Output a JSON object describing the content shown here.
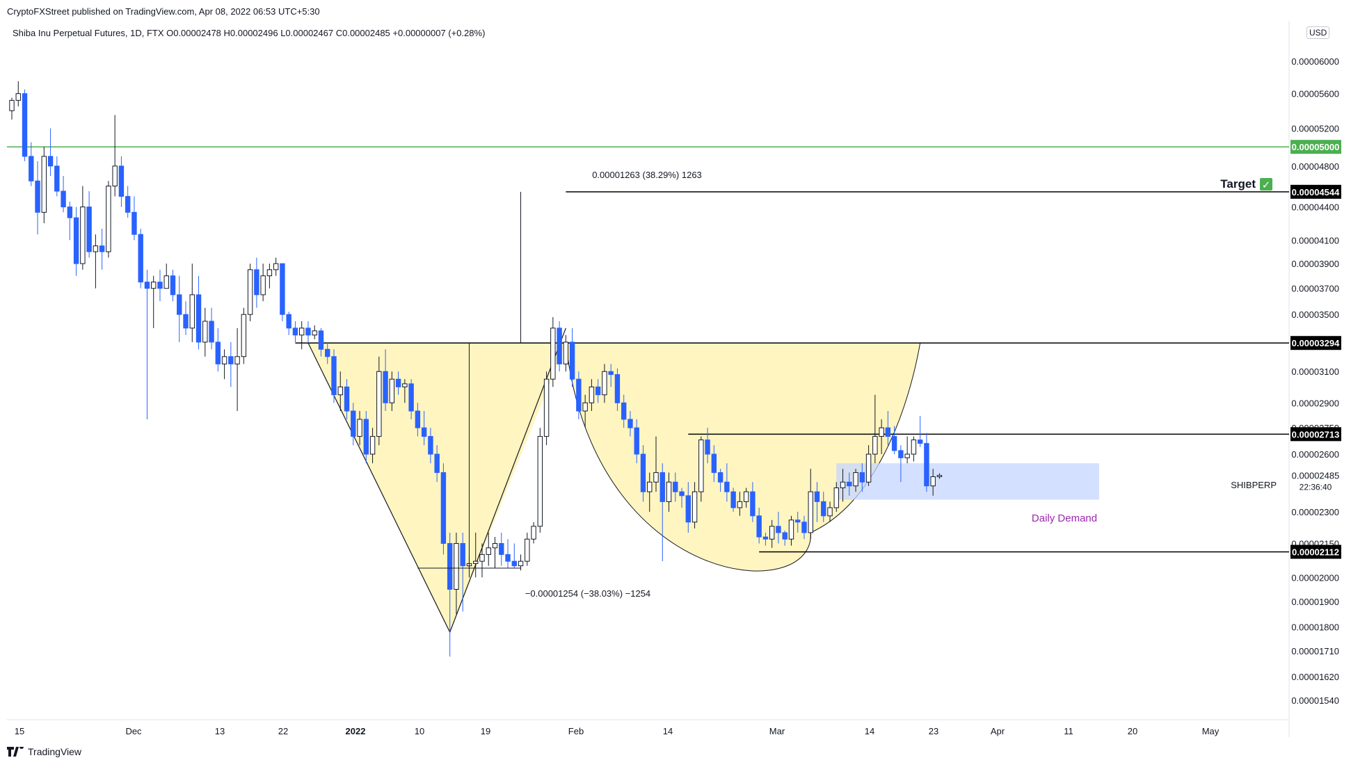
{
  "header": {
    "publisher": "CryptoFXStreet published on TradingView.com, Apr 08, 2022 06:53 UTC+5:30",
    "ohlc": "Shiba Inu Perpetual Futures, 1D, FTX  O0.00002478  H0.00002496  L0.00002467  C0.00002485  +0.00000007 (+0.28%)"
  },
  "footer": {
    "brand": "TradingView"
  },
  "currency": "USD",
  "chart_data": {
    "type": "candlestick",
    "symbol": "SHIBPERP",
    "last_price": "0.00002485",
    "countdown": "22:36:40",
    "x_tick_labels": [
      "15",
      "Dec",
      "13",
      "22",
      "2022",
      "10",
      "19",
      "Feb",
      "14",
      "Mar",
      "14",
      "23",
      "Apr",
      "11",
      "20",
      "May"
    ],
    "y_tick_labels": [
      "0.00006000",
      "0.00005600",
      "0.00005200",
      "0.00004800",
      "0.00004400",
      "0.00004100",
      "0.00003900",
      "0.00003700",
      "0.00003500",
      "0.00003100",
      "0.00002900",
      "0.00002750",
      "0.00002600",
      "0.00002300",
      "0.00002150",
      "0.00002000",
      "0.00001900",
      "0.00001800",
      "0.00001710",
      "0.00001620",
      "0.00001540"
    ],
    "levels": [
      {
        "price": "0.00005000",
        "color": "#4caf50",
        "label": "0.00005000"
      },
      {
        "price": "0.00004544",
        "color": "#000000",
        "label": "0.00004544"
      },
      {
        "price": "0.00003294",
        "color": "#000000",
        "label": "0.00003294"
      },
      {
        "price": "0.00002713",
        "color": "#000000",
        "label": "0.00002713"
      },
      {
        "price": "0.00002112",
        "color": "#000000",
        "label": "0.00002112"
      }
    ],
    "annotations": {
      "target": "Target",
      "target_check": "✓",
      "measure_up": "0.00001263 (38.29%) 1263",
      "measure_down": "−0.00001254 (−38.03%) −1254",
      "daily_demand": "Daily Demand"
    },
    "colors": {
      "up": "#ffffff",
      "down": "#2962ff",
      "pattern_fill": "#fff3b0",
      "demand_fill": "#c5d5ff",
      "demand_text": "#9c27b0",
      "green_line": "#4caf50"
    },
    "candles": [
      [
        5.4e-05,
        5.55e-05,
        5.3e-05,
        5.52e-05
      ],
      [
        5.52e-05,
        5.75e-05,
        5.45e-05,
        5.6e-05
      ],
      [
        5.6e-05,
        5.65e-05,
        4.85e-05,
        4.9e-05
      ],
      [
        4.9e-05,
        5.05e-05,
        4.6e-05,
        4.65e-05
      ],
      [
        4.65e-05,
        4.85e-05,
        4.15e-05,
        4.35e-05
      ],
      [
        4.35e-05,
        5e-05,
        4.25e-05,
        4.9e-05
      ],
      [
        4.9e-05,
        5.2e-05,
        4.7e-05,
        4.8e-05
      ],
      [
        4.8e-05,
        4.9e-05,
        4.5e-05,
        4.55e-05
      ],
      [
        4.55e-05,
        4.7e-05,
        4.35e-05,
        4.4e-05
      ],
      [
        4.4e-05,
        4.45e-05,
        4.1e-05,
        4.3e-05
      ],
      [
        4.3e-05,
        4.4e-05,
        3.8e-05,
        3.9e-05
      ],
      [
        3.9e-05,
        4.6e-05,
        3.85e-05,
        4.4e-05
      ],
      [
        4.4e-05,
        4.55e-05,
        3.95e-05,
        4e-05
      ],
      [
        4e-05,
        4.15e-05,
        3.7e-05,
        4.05e-05
      ],
      [
        4.05e-05,
        4.2e-05,
        3.85e-05,
        4e-05
      ],
      [
        4e-05,
        4.65e-05,
        3.95e-05,
        4.6e-05
      ],
      [
        4.6e-05,
        5.35e-05,
        4.5e-05,
        4.8e-05
      ],
      [
        4.8e-05,
        4.9e-05,
        4.4e-05,
        4.5e-05
      ],
      [
        4.5e-05,
        4.6e-05,
        4.3e-05,
        4.35e-05
      ],
      [
        4.35e-05,
        4.5e-05,
        4.1e-05,
        4.15e-05
      ],
      [
        4.15e-05,
        4.2e-05,
        3.7e-05,
        3.75e-05
      ],
      [
        3.75e-05,
        3.85e-05,
        2.8e-05,
        3.7e-05
      ],
      [
        3.7e-05,
        3.8e-05,
        3.4e-05,
        3.75e-05
      ],
      [
        3.75e-05,
        3.85e-05,
        3.6e-05,
        3.7e-05
      ],
      [
        3.7e-05,
        3.9e-05,
        3.7e-05,
        3.8e-05
      ],
      [
        3.8e-05,
        3.85e-05,
        3.6e-05,
        3.65e-05
      ],
      [
        3.65e-05,
        3.8e-05,
        3.3e-05,
        3.5e-05
      ],
      [
        3.5e-05,
        3.6e-05,
        3.35e-05,
        3.4e-05
      ],
      [
        3.4e-05,
        3.9e-05,
        3.3e-05,
        3.65e-05
      ],
      [
        3.65e-05,
        3.8e-05,
        3.25e-05,
        3.3e-05
      ],
      [
        3.3e-05,
        3.55e-05,
        3.2e-05,
        3.45e-05
      ],
      [
        3.45e-05,
        3.55e-05,
        3.25e-05,
        3.3e-05
      ],
      [
        3.3e-05,
        3.4e-05,
        3.1e-05,
        3.15e-05
      ],
      [
        3.15e-05,
        3.25e-05,
        3.05e-05,
        3.2e-05
      ],
      [
        3.2e-05,
        3.3e-05,
        3e-05,
        3.15e-05
      ],
      [
        3.15e-05,
        3.4e-05,
        2.85e-05,
        3.2e-05
      ],
      [
        3.2e-05,
        3.55e-05,
        3.15e-05,
        3.5e-05
      ],
      [
        3.5e-05,
        3.9e-05,
        3.45e-05,
        3.85e-05
      ],
      [
        3.85e-05,
        3.95e-05,
        3.55e-05,
        3.65e-05
      ],
      [
        3.65e-05,
        3.9e-05,
        3.6e-05,
        3.8e-05
      ],
      [
        3.8e-05,
        3.9e-05,
        3.7e-05,
        3.85e-05
      ],
      [
        3.85e-05,
        3.95e-05,
        3.8e-05,
        3.9e-05
      ],
      [
        3.9e-05,
        3.9e-05,
        3.45e-05,
        3.5e-05
      ],
      [
        3.5e-05,
        3.52e-05,
        3.35e-05,
        3.4e-05
      ],
      [
        3.4e-05,
        3.45e-05,
        3.3e-05,
        3.35e-05
      ],
      [
        3.35e-05,
        3.45e-05,
        3.25e-05,
        3.4e-05
      ],
      [
        3.4e-05,
        3.45e-05,
        3.3e-05,
        3.35e-05
      ],
      [
        3.35e-05,
        3.42e-05,
        3.32e-05,
        3.38e-05
      ],
      [
        3.38e-05,
        3.4e-05,
        3.2e-05,
        3.25e-05
      ],
      [
        3.25e-05,
        3.3e-05,
        3.15e-05,
        3.2e-05
      ],
      [
        3.2e-05,
        3.25e-05,
        2.9e-05,
        2.95e-05
      ],
      [
        2.95e-05,
        3.1e-05,
        2.85e-05,
        3e-05
      ],
      [
        3e-05,
        3.05e-05,
        2.8e-05,
        2.85e-05
      ],
      [
        2.85e-05,
        2.9e-05,
        2.65e-05,
        2.7e-05
      ],
      [
        2.7e-05,
        2.85e-05,
        2.65e-05,
        2.8e-05
      ],
      [
        2.8e-05,
        2.85e-05,
        2.55e-05,
        2.6e-05
      ],
      [
        2.6e-05,
        2.75e-05,
        2.55e-05,
        2.7e-05
      ],
      [
        2.7e-05,
        3.2e-05,
        2.65e-05,
        3.1e-05
      ],
      [
        3.1e-05,
        3.25e-05,
        2.85e-05,
        2.9e-05
      ],
      [
        2.9e-05,
        3.1e-05,
        2.85e-05,
        3.05e-05
      ],
      [
        3.05e-05,
        3.1e-05,
        2.95e-05,
        3e-05
      ],
      [
        3e-05,
        3.05e-05,
        2.9e-05,
        3.02e-05
      ],
      [
        3.02e-05,
        3.05e-05,
        2.8e-05,
        2.85e-05
      ],
      [
        2.85e-05,
        2.9e-05,
        2.7e-05,
        2.75e-05
      ],
      [
        2.75e-05,
        2.85e-05,
        2.65e-05,
        2.7e-05
      ],
      [
        2.7e-05,
        2.75e-05,
        2.55e-05,
        2.6e-05
      ],
      [
        2.6e-05,
        2.65e-05,
        2.45e-05,
        2.5e-05
      ],
      [
        2.5e-05,
        2.55e-05,
        2.1e-05,
        2.15e-05
      ],
      [
        2.15e-05,
        2.2e-05,
        1.69e-05,
        1.95e-05
      ],
      [
        1.95e-05,
        2.2e-05,
        1.85e-05,
        2.15e-05
      ],
      [
        2.15e-05,
        2.2e-05,
        1.86e-05,
        2.05e-05
      ],
      [
        2.05e-05,
        2.1e-05,
        2e-05,
        2.06e-05
      ],
      [
        2.06e-05,
        2.2e-05,
        2e-05,
        2.07e-05
      ],
      [
        2.07e-05,
        2.15e-05,
        2e-05,
        2.1e-05
      ],
      [
        2.1e-05,
        2.2e-05,
        2.05e-05,
        2.13e-05
      ],
      [
        2.13e-05,
        2.18e-05,
        2.04e-05,
        2.15e-05
      ],
      [
        2.15e-05,
        2.2e-05,
        2.05e-05,
        2.1e-05
      ],
      [
        2.1e-05,
        2.17e-05,
        2.04e-05,
        2.07e-05
      ],
      [
        2.07e-05,
        2.15e-05,
        2.04e-05,
        2.05e-05
      ],
      [
        2.05e-05,
        2.1e-05,
        2.03e-05,
        2.07e-05
      ],
      [
        2.07e-05,
        2.2e-05,
        2.05e-05,
        2.17e-05
      ],
      [
        2.17e-05,
        2.25e-05,
        2.15e-05,
        2.23e-05
      ],
      [
        2.23e-05,
        2.75e-05,
        2.2e-05,
        2.7e-05
      ],
      [
        2.7e-05,
        3.1e-05,
        2.65e-05,
        3.05e-05
      ],
      [
        3.05e-05,
        3.48e-05,
        3e-05,
        3.4e-05
      ],
      [
        3.4e-05,
        3.45e-05,
        3.1e-05,
        3.15e-05
      ],
      [
        3.15e-05,
        3.35e-05,
        3.1e-05,
        3.3e-05
      ],
      [
        3.3e-05,
        3.4e-05,
        3e-05,
        3.05e-05
      ],
      [
        3.05e-05,
        3.1e-05,
        2.8e-05,
        2.85e-05
      ],
      [
        2.85e-05,
        2.95e-05,
        2.75e-05,
        2.9e-05
      ],
      [
        2.9e-05,
        3.05e-05,
        2.85e-05,
        3e-05
      ],
      [
        3e-05,
        3.05e-05,
        2.9e-05,
        2.95e-05
      ],
      [
        2.95e-05,
        3.15e-05,
        2.9e-05,
        3.1e-05
      ],
      [
        3.1e-05,
        3.15e-05,
        3e-05,
        3.08e-05
      ],
      [
        3.08e-05,
        3.12e-05,
        2.85e-05,
        2.9e-05
      ],
      [
        2.9e-05,
        2.95e-05,
        2.75e-05,
        2.8e-05
      ],
      [
        2.8e-05,
        2.85e-05,
        2.7e-05,
        2.75e-05
      ],
      [
        2.75e-05,
        2.8e-05,
        2.55e-05,
        2.6e-05
      ],
      [
        2.6e-05,
        2.65e-05,
        2.35e-05,
        2.4e-05
      ],
      [
        2.4e-05,
        2.5e-05,
        2.3e-05,
        2.45e-05
      ],
      [
        2.45e-05,
        2.7e-05,
        2.4e-05,
        2.5e-05
      ],
      [
        2.5e-05,
        2.55e-05,
        2.07e-05,
        2.35e-05
      ],
      [
        2.35e-05,
        2.5e-05,
        2.3e-05,
        2.45e-05
      ],
      [
        2.45e-05,
        2.5e-05,
        2.35e-05,
        2.4e-05
      ],
      [
        2.4e-05,
        2.42e-05,
        2.32e-05,
        2.38e-05
      ],
      [
        2.38e-05,
        2.45e-05,
        2.2e-05,
        2.25e-05
      ],
      [
        2.25e-05,
        2.45e-05,
        2.22e-05,
        2.4e-05
      ],
      [
        2.4e-05,
        2.7e-05,
        2.35e-05,
        2.68e-05
      ],
      [
        2.68e-05,
        2.75e-05,
        2.55e-05,
        2.6e-05
      ],
      [
        2.6e-05,
        2.65e-05,
        2.45e-05,
        2.5e-05
      ],
      [
        2.5e-05,
        2.52e-05,
        2.4e-05,
        2.45e-05
      ],
      [
        2.45e-05,
        2.55e-05,
        2.35e-05,
        2.4e-05
      ],
      [
        2.4e-05,
        2.42e-05,
        2.3e-05,
        2.32e-05
      ],
      [
        2.32e-05,
        2.4e-05,
        2.28e-05,
        2.35e-05
      ],
      [
        2.35e-05,
        2.42e-05,
        2.32e-05,
        2.4e-05
      ],
      [
        2.4e-05,
        2.45e-05,
        2.25e-05,
        2.28e-05
      ],
      [
        2.28e-05,
        2.32e-05,
        2.15e-05,
        2.18e-05
      ],
      [
        2.18e-05,
        2.2e-05,
        2.14e-05,
        2.17e-05
      ],
      [
        2.17e-05,
        2.26e-05,
        2.13e-05,
        2.23e-05
      ],
      [
        2.23e-05,
        2.3e-05,
        2.15e-05,
        2.2e-05
      ],
      [
        2.2e-05,
        2.21e-05,
        2.14e-05,
        2.17e-05
      ],
      [
        2.17e-05,
        2.28e-05,
        2.14e-05,
        2.26e-05
      ],
      [
        2.26e-05,
        2.3e-05,
        2.2e-05,
        2.25e-05
      ],
      [
        2.25e-05,
        2.28e-05,
        2.17e-05,
        2.2e-05
      ],
      [
        2.2e-05,
        2.52e-05,
        2.17e-05,
        2.4e-05
      ],
      [
        2.4e-05,
        2.45e-05,
        2.25e-05,
        2.35e-05
      ],
      [
        2.35e-05,
        2.4e-05,
        2.25e-05,
        2.28e-05
      ],
      [
        2.28e-05,
        2.35e-05,
        2.25e-05,
        2.32e-05
      ],
      [
        2.32e-05,
        2.45e-05,
        2.3e-05,
        2.42e-05
      ],
      [
        2.42e-05,
        2.52e-05,
        2.35e-05,
        2.45e-05
      ],
      [
        2.45e-05,
        2.5e-05,
        2.38e-05,
        2.43e-05
      ],
      [
        2.43e-05,
        2.52e-05,
        2.4e-05,
        2.5e-05
      ],
      [
        2.5e-05,
        2.55e-05,
        2.4e-05,
        2.45e-05
      ],
      [
        2.45e-05,
        2.65e-05,
        2.43e-05,
        2.6e-05
      ],
      [
        2.6e-05,
        2.95e-05,
        2.55e-05,
        2.7e-05
      ],
      [
        2.7e-05,
        2.8e-05,
        2.6e-05,
        2.75e-05
      ],
      [
        2.75e-05,
        2.85e-05,
        2.65e-05,
        2.7e-05
      ],
      [
        2.7e-05,
        2.76e-05,
        2.6e-05,
        2.62e-05
      ],
      [
        2.62e-05,
        2.65e-05,
        2.45e-05,
        2.58e-05
      ],
      [
        2.58e-05,
        2.7e-05,
        2.55e-05,
        2.6e-05
      ],
      [
        2.6e-05,
        2.7e-05,
        2.56e-05,
        2.68e-05
      ],
      [
        2.68e-05,
        2.82e-05,
        2.64e-05,
        2.66e-05
      ],
      [
        2.66e-05,
        2.72e-05,
        2.4e-05,
        2.43e-05
      ],
      [
        2.43e-05,
        2.52e-05,
        2.38e-05,
        2.478e-05
      ],
      [
        2.478e-05,
        2.496e-05,
        2.467e-05,
        2.485e-05
      ]
    ]
  }
}
